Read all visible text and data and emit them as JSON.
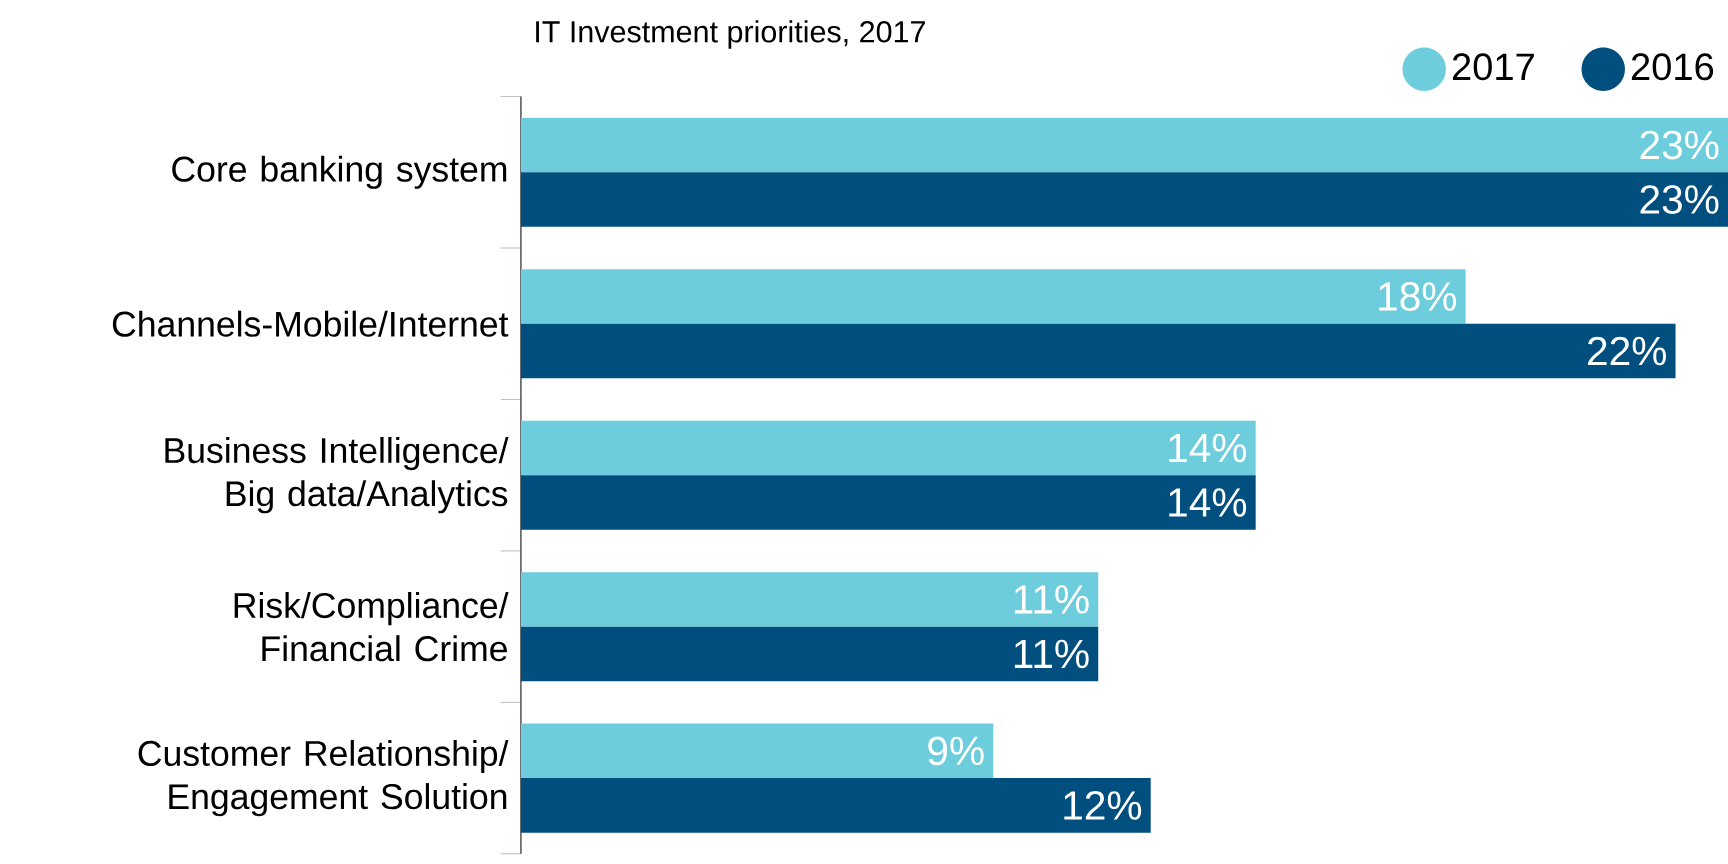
{
  "chart_data": {
    "type": "bar",
    "orientation": "horizontal",
    "title": "IT Investment priorities, 2017",
    "categories": [
      "Core banking system",
      "Channels-Mobile/Internet",
      "Business Intelligence/ Big data/Analytics",
      "Risk/Compliance/ Financial Crime",
      "Customer Relationship/ Engagement Solution"
    ],
    "series": [
      {
        "name": "2017",
        "color": "#6ecddc",
        "values": [
          23,
          18,
          14,
          11,
          9
        ],
        "value_labels": [
          "23%",
          "18%",
          "14%",
          "11%",
          "9%"
        ]
      },
      {
        "name": "2016",
        "color": "#004f7f",
        "values": [
          23,
          22,
          14,
          11,
          12
        ],
        "value_labels": [
          "23%",
          "22%",
          "14%",
          "11%",
          "12%"
        ]
      }
    ],
    "legend": "top right"
  }
}
